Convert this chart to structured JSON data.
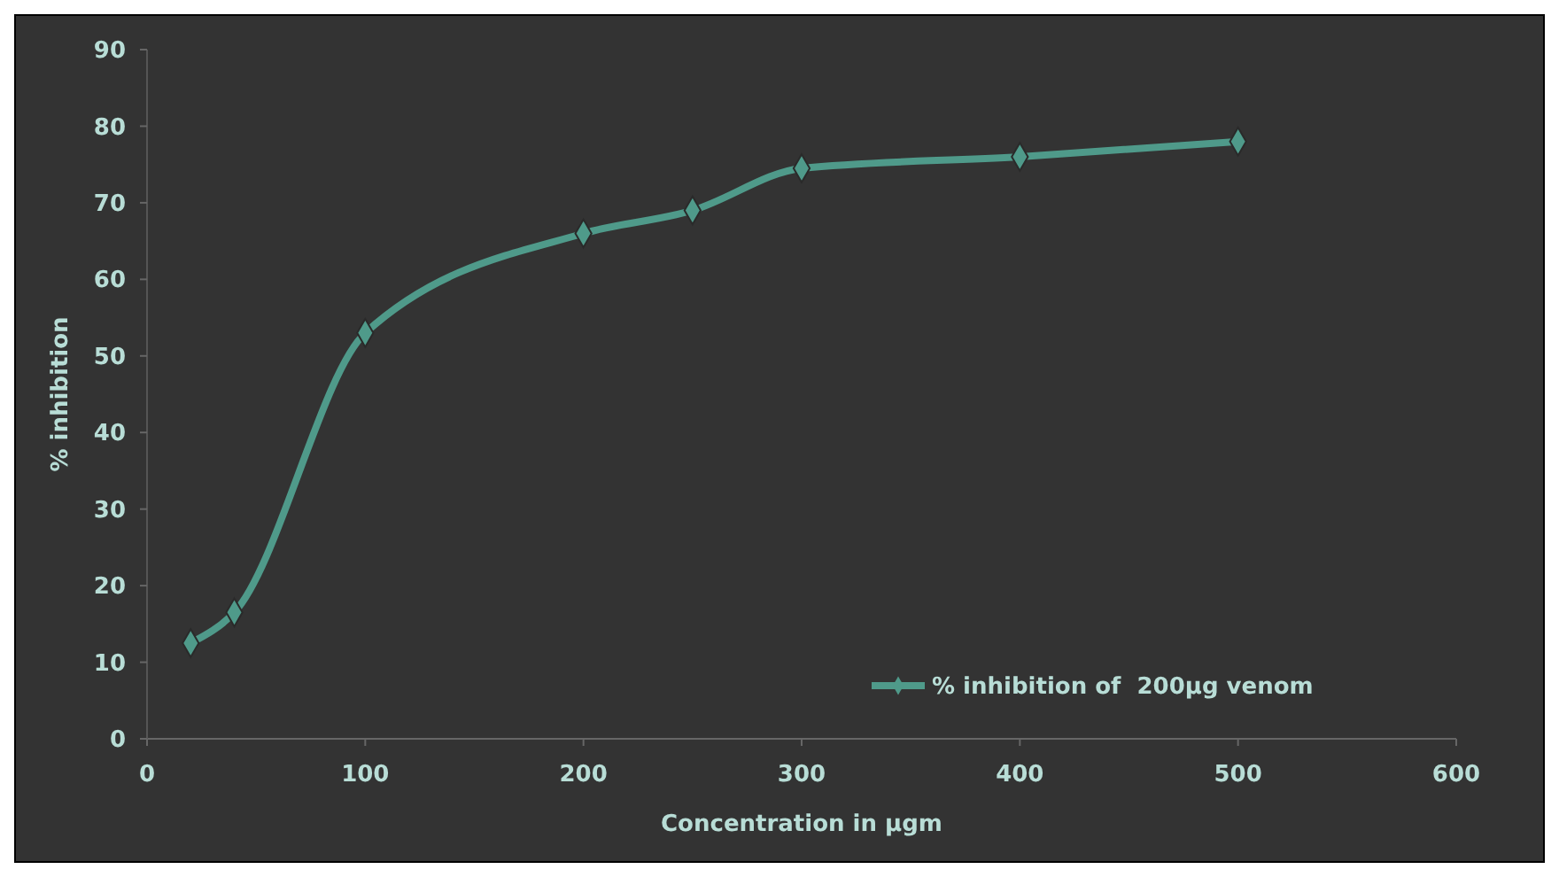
{
  "chart_data": {
    "type": "line",
    "xlabel": "Concentration in µgm",
    "ylabel": "% inhibition",
    "x": [
      20,
      40,
      100,
      200,
      250,
      300,
      400,
      500
    ],
    "series": [
      {
        "name": "% inhibition of  200µg venom",
        "color": "#4f9a8a",
        "values": [
          12.5,
          16.5,
          53,
          66,
          69,
          74.5,
          76,
          78
        ]
      }
    ],
    "xlim": [
      0,
      600
    ],
    "xticks": [
      0,
      100,
      200,
      300,
      400,
      500,
      600
    ],
    "ylim": [
      0,
      90
    ],
    "yticks": [
      0,
      10,
      20,
      30,
      40,
      50,
      60,
      70,
      80,
      90
    ],
    "marker": "diamond",
    "legend": "bottom right",
    "grid": false
  }
}
